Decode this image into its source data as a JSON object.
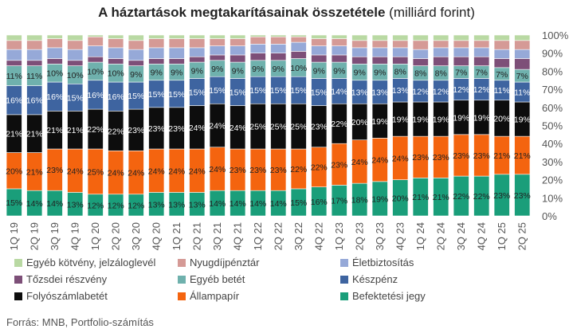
{
  "chart_data": {
    "type": "bar",
    "stacked": true,
    "title": "A háztartások megtakarításainak összetétele",
    "subtitle": "(milliárd forint)",
    "source": "Forrás: MNB, Portfolio-számítás",
    "ylim": [
      0,
      100
    ],
    "yticks": [
      "0%",
      "10%",
      "20%",
      "30%",
      "40%",
      "50%",
      "60%",
      "70%",
      "80%",
      "90%",
      "100%"
    ],
    "categories": [
      "1Q 19",
      "2Q 19",
      "3Q 19",
      "4Q 19",
      "1Q 20",
      "2Q 20",
      "3Q 20",
      "4Q 20",
      "1Q 21",
      "2Q 21",
      "3Q 21",
      "4Q 21",
      "1Q 22",
      "2Q 22",
      "3Q 22",
      "4Q 22",
      "1Q 23",
      "2Q 23",
      "3Q 23",
      "4Q 23",
      "1Q 24",
      "2Q 24",
      "3Q 24",
      "4Q 24",
      "1Q 25",
      "2Q 25"
    ],
    "xtick_labels": [
      "1Q 19",
      "",
      "3Q 19",
      "",
      "1Q 20",
      "",
      "3Q 20",
      "",
      "1Q 21",
      "",
      "3Q 21",
      "",
      "1Q 22",
      "",
      "3Q 22",
      "",
      "1Q 23",
      "",
      "3Q 23",
      "",
      "1Q 24",
      "",
      "3Q 24",
      "",
      "1Q 25",
      ""
    ],
    "xtick_labels_all": [
      "1Q 19",
      "2Q 19",
      "3Q 19",
      "4Q 19",
      "1Q 20",
      "2Q 20",
      "3Q 20",
      "4Q 20",
      "1Q 21",
      "2Q 21",
      "3Q 21",
      "4Q 21",
      "1Q 22",
      "2Q 22",
      "3Q 22",
      "4Q 22",
      "1Q 23",
      "2Q 23",
      "3Q 23",
      "4Q 23",
      "1Q 24",
      "2Q 24",
      "3Q 24",
      "4Q 24",
      "1Q 25",
      "2Q 25"
    ],
    "series": [
      {
        "name": "Befektetési jegy",
        "color": "#1a9e7a",
        "values": [
          15,
          14,
          14,
          13,
          12,
          12,
          12,
          13,
          13,
          13,
          14,
          14,
          14,
          14,
          15,
          16,
          17,
          18,
          19,
          20,
          21,
          21,
          22,
          22,
          23,
          23
        ],
        "labels": true
      },
      {
        "name": "Állampapír",
        "color": "#f4640f",
        "values": [
          20,
          21,
          23,
          24,
          25,
          24,
          24,
          24,
          24,
          24,
          24,
          23,
          23,
          23,
          22,
          22,
          23,
          24,
          24,
          24,
          23,
          23,
          23,
          23,
          21,
          21
        ],
        "labels": true
      },
      {
        "name": "Folyószámlabetét",
        "color": "#0d0d0d",
        "values": [
          21,
          21,
          21,
          21,
          22,
          22,
          23,
          23,
          23,
          24,
          24,
          24,
          25,
          25,
          25,
          23,
          22,
          20,
          19,
          19,
          19,
          19,
          19,
          19,
          20,
          19
        ],
        "labels": true
      },
      {
        "name": "Készpénz",
        "color": "#3e64a0",
        "values": [
          16,
          16,
          16,
          15,
          16,
          16,
          15,
          15,
          15,
          15,
          15,
          15,
          15,
          15,
          15,
          15,
          14,
          13,
          13,
          13,
          12,
          12,
          12,
          12,
          11,
          11
        ],
        "labels": true
      },
      {
        "name": "Egyéb betét",
        "color": "#6fb1ad",
        "values": [
          11,
          11,
          10,
          10,
          10,
          10,
          9,
          9,
          9,
          9,
          9,
          9,
          9,
          9,
          10,
          9,
          9,
          9,
          9,
          8,
          8,
          8,
          7,
          7,
          7,
          7
        ],
        "labels": true
      },
      {
        "name": "Tőzsdei részvény",
        "color": "#7d4f78",
        "values": [
          3,
          3,
          3,
          3,
          3,
          3,
          3,
          3,
          3,
          3,
          3,
          4,
          4,
          4,
          4,
          4,
          4,
          4,
          4,
          4,
          4,
          5,
          5,
          5,
          5,
          6
        ],
        "labels": false
      },
      {
        "name": "Életbiztosítás",
        "color": "#96a9d8",
        "values": [
          6,
          6,
          6,
          6,
          6,
          6,
          6,
          6,
          6,
          5,
          5,
          5,
          5,
          5,
          5,
          5,
          5,
          5,
          5,
          5,
          5,
          5,
          5,
          5,
          5,
          5
        ],
        "labels": false
      },
      {
        "name": "Nyugdíjpénztár",
        "color": "#d59a96",
        "values": [
          5,
          5,
          5,
          5,
          5,
          5,
          5,
          5,
          5,
          5,
          4,
          4,
          4,
          4,
          3,
          4,
          4,
          4,
          4,
          4,
          5,
          4,
          4,
          4,
          5,
          5
        ],
        "labels": false
      },
      {
        "name": "Egyéb kötvény, jelzáloglevél",
        "color": "#b9d9a3",
        "values": [
          3,
          3,
          2,
          3,
          1,
          2,
          3,
          2,
          2,
          2,
          2,
          2,
          1,
          1,
          1,
          2,
          2,
          3,
          3,
          3,
          3,
          3,
          3,
          3,
          3,
          3
        ],
        "labels": false
      }
    ],
    "legend": [
      {
        "name": "Egyéb kötvény, jelzáloglevél",
        "color": "#b9d9a3"
      },
      {
        "name": "Nyugdíjpénztár",
        "color": "#d59a96"
      },
      {
        "name": "Életbiztosítás",
        "color": "#96a9d8"
      },
      {
        "name": "Tőzsdei részvény",
        "color": "#7d4f78"
      },
      {
        "name": "Egyéb betét",
        "color": "#6fb1ad"
      },
      {
        "name": "Készpénz",
        "color": "#3e64a0"
      },
      {
        "name": "Folyószámlabetét",
        "color": "#0d0d0d"
      },
      {
        "name": "Állampapír",
        "color": "#f4640f"
      },
      {
        "name": "Befektetési jegy",
        "color": "#1a9e7a"
      }
    ],
    "legend_position": "bottom",
    "grid": false
  }
}
